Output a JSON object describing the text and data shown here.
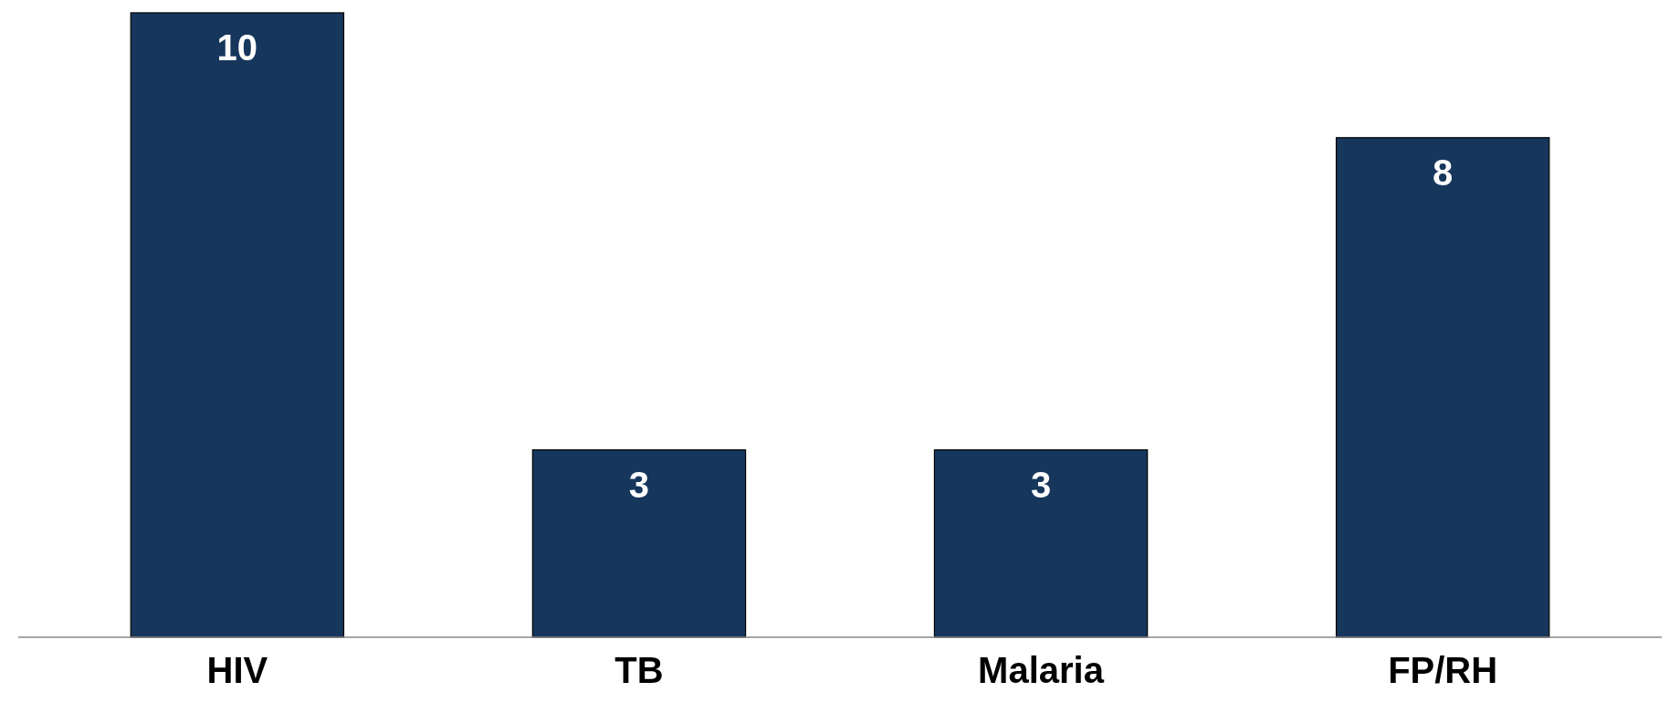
{
  "chart_data": {
    "type": "bar",
    "categories": [
      "HIV",
      "TB",
      "Malaria",
      "FP/RH"
    ],
    "values": [
      10,
      3,
      3,
      8
    ],
    "color": "#16365c",
    "ylim": [
      0,
      10
    ],
    "data_labels": true,
    "tick_labels": "x"
  }
}
